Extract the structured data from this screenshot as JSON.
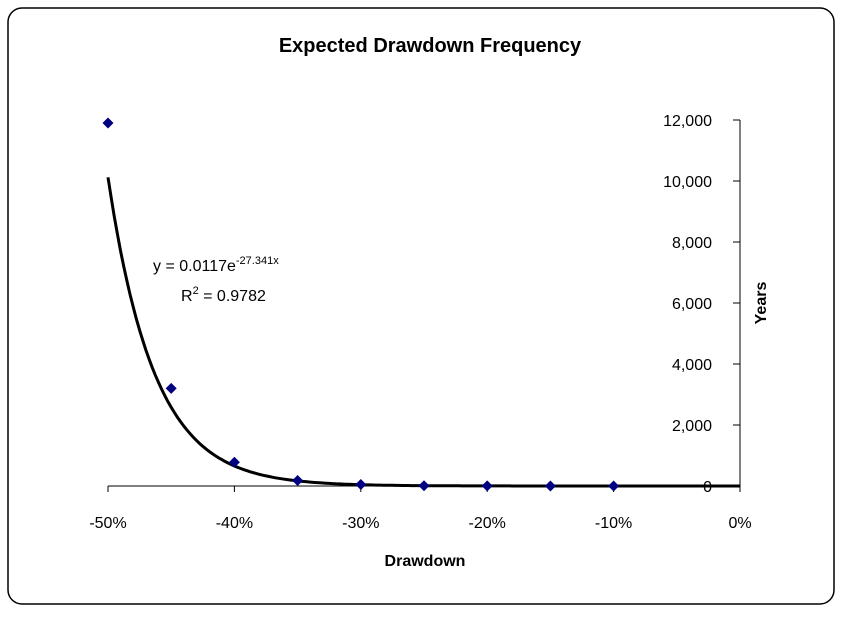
{
  "chart_data": {
    "type": "scatter",
    "title": "Expected Drawdown Frequency",
    "x_label": "Drawdown",
    "y_label": "Years",
    "x": [
      -50,
      -45,
      -40,
      -35,
      -30,
      -25,
      -20,
      -15,
      -10
    ],
    "series": [
      {
        "color": "#000080",
        "values": [
          11900,
          3200,
          780,
          180,
          50,
          10,
          5,
          2,
          1
        ]
      }
    ],
    "xlim": [
      -50,
      0
    ],
    "xticks": [
      {
        "value": -50,
        "label": "-50%"
      },
      {
        "value": -40,
        "label": "-40%"
      },
      {
        "value": -30,
        "label": "-30%"
      },
      {
        "value": -20,
        "label": "-20%"
      },
      {
        "value": -10,
        "label": "-10%"
      },
      {
        "value": 0,
        "label": "0%"
      }
    ],
    "ylim": [
      0,
      12000
    ],
    "yticks": [
      0,
      {
        "value": 2000,
        "label": "2,000"
      },
      {
        "value": 4000,
        "label": "4,000"
      },
      {
        "value": 6000,
        "label": "6,000"
      },
      {
        "value": 8000,
        "label": "8,000"
      },
      {
        "value": 10000,
        "label": "10,000"
      },
      {
        "value": 12000,
        "label": "12,000"
      }
    ],
    "y_axis_side": "right",
    "grid": false,
    "trendline": {
      "color": "#000000",
      "equation": {
        "lhs": "y = ",
        "a": 0.0117,
        "base": "e",
        "b": -27.341,
        "var": "x"
      },
      "r_squared": {
        "symbol": "R",
        "power": "2",
        "eq": " = ",
        "value": 0.9782
      }
    }
  }
}
